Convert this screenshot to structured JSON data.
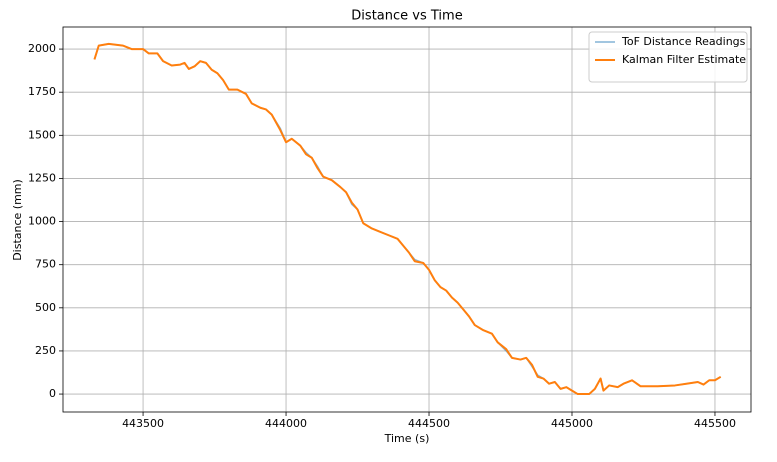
{
  "chart_data": {
    "type": "line",
    "title": "Distance vs Time",
    "x_label": "Time (s)",
    "y_label": "Distance (mm)",
    "x": [
      443330,
      443345,
      443380,
      443430,
      443460,
      443500,
      443520,
      443550,
      443570,
      443600,
      443630,
      443645,
      443660,
      443680,
      443700,
      443720,
      443740,
      443760,
      443780,
      443800,
      443830,
      443860,
      443880,
      443910,
      443930,
      443950,
      443980,
      444000,
      444020,
      444050,
      444070,
      444090,
      444110,
      444130,
      444160,
      444190,
      444210,
      444230,
      444250,
      444270,
      444300,
      444330,
      444360,
      444390,
      444410,
      444430,
      444450,
      444480,
      444500,
      444520,
      444540,
      444560,
      444580,
      444600,
      444620,
      444640,
      444660,
      444690,
      444720,
      444740,
      444770,
      444790,
      444820,
      444840,
      444860,
      444880,
      444900,
      444920,
      444940,
      444960,
      444980,
      445000,
      445020,
      445060,
      445080,
      445100,
      445110,
      445130,
      445160,
      445180,
      445210,
      445240,
      445300,
      445360,
      445400,
      445440,
      445460,
      445480,
      445500,
      445520
    ],
    "series": [
      {
        "name": "ToF Distance Readings",
        "color": "#1f77b4",
        "values": [
          1940,
          2020,
          2030,
          2020,
          2000,
          2000,
          1975,
          1975,
          1930,
          1905,
          1910,
          1920,
          1885,
          1900,
          1930,
          1920,
          1880,
          1860,
          1820,
          1765,
          1765,
          1740,
          1685,
          1660,
          1650,
          1620,
          1540,
          1460,
          1480,
          1440,
          1400,
          1370,
          1320,
          1260,
          1240,
          1200,
          1170,
          1100,
          1070,
          990,
          960,
          940,
          920,
          900,
          860,
          820,
          780,
          760,
          720,
          660,
          620,
          600,
          560,
          530,
          490,
          450,
          400,
          370,
          350,
          300,
          250,
          210,
          200,
          210,
          160,
          110,
          90,
          60,
          70,
          30,
          40,
          20,
          0,
          0,
          30,
          90,
          20,
          50,
          40,
          60,
          80,
          45,
          45,
          50,
          60,
          70,
          55,
          80,
          80,
          100
        ]
      },
      {
        "name": "Kalman Filter Estimate",
        "color": "#ff7f0e",
        "values": [
          1940,
          2020,
          2030,
          2020,
          2000,
          2000,
          1975,
          1975,
          1930,
          1905,
          1910,
          1920,
          1885,
          1900,
          1930,
          1920,
          1880,
          1860,
          1820,
          1765,
          1765,
          1740,
          1685,
          1660,
          1650,
          1620,
          1530,
          1460,
          1480,
          1440,
          1390,
          1370,
          1310,
          1260,
          1240,
          1200,
          1170,
          1110,
          1070,
          990,
          960,
          940,
          920,
          900,
          860,
          820,
          770,
          760,
          720,
          660,
          620,
          600,
          560,
          530,
          490,
          450,
          400,
          370,
          350,
          300,
          260,
          210,
          200,
          210,
          170,
          100,
          90,
          60,
          70,
          30,
          40,
          20,
          0,
          0,
          30,
          90,
          20,
          50,
          40,
          60,
          80,
          45,
          45,
          50,
          60,
          70,
          55,
          80,
          80,
          100
        ]
      }
    ],
    "xlim": [
      443220,
      445626
    ],
    "ylim": [
      -104,
      2128
    ],
    "xticks": [
      443500,
      444000,
      444500,
      445000,
      445500
    ],
    "yticks": [
      0,
      250,
      500,
      750,
      1000,
      1250,
      1500,
      1750,
      2000
    ],
    "grid": true,
    "legend": "upper right"
  }
}
